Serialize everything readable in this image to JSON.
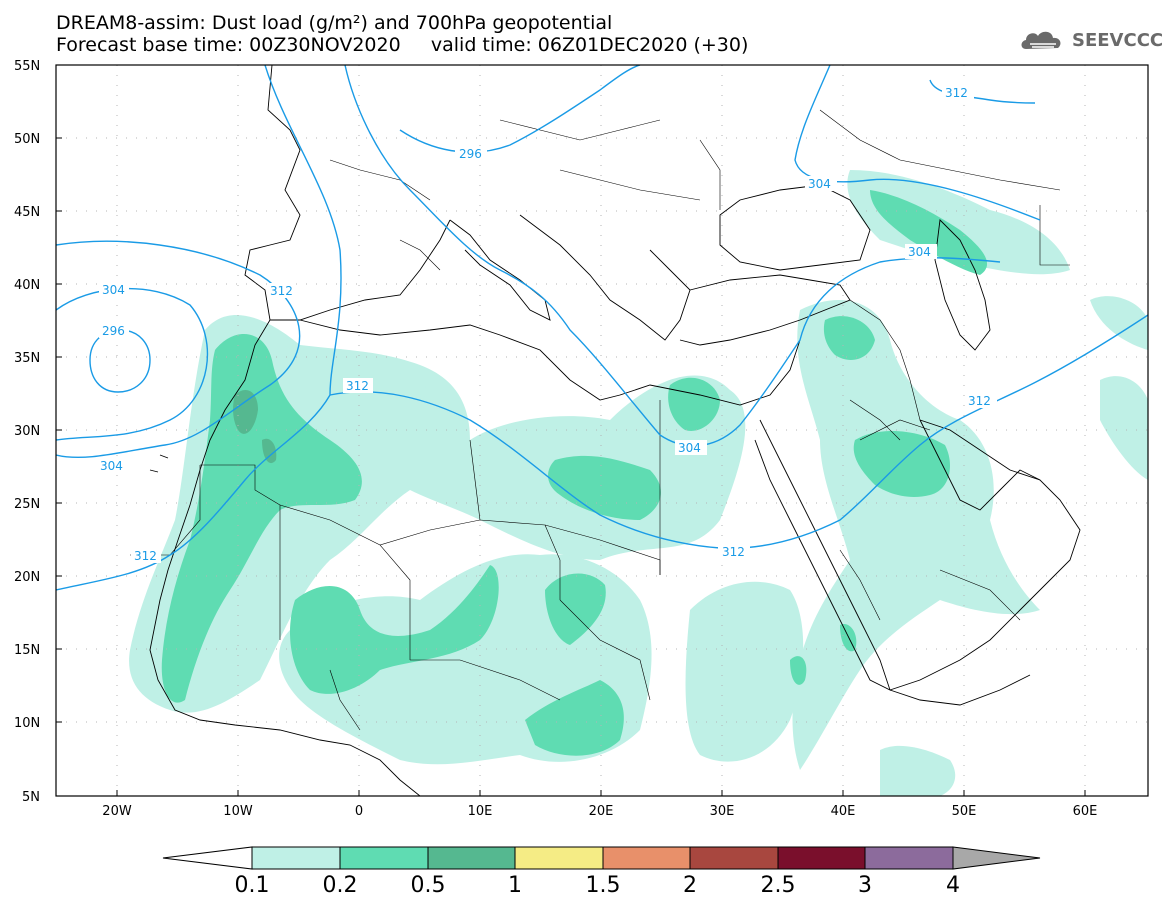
{
  "header": {
    "title_line1": "DREAM8-assim: Dust load (g/m²) and 700hPa geopotential",
    "title_line2": "Forecast base time: 00Z30NOV2020     valid time: 06Z01DEC2020 (+30)",
    "brand": "SEEVCCC",
    "brand_logo_icon": "cloud-logo-icon"
  },
  "map": {
    "lat_labels": [
      "55N",
      "50N",
      "45N",
      "40N",
      "35N",
      "30N",
      "25N",
      "20N",
      "15N",
      "10N",
      "5N"
    ],
    "lon_labels": [
      "20W",
      "10W",
      "0",
      "10E",
      "20E",
      "30E",
      "40E",
      "50E",
      "60E"
    ],
    "extent": {
      "lon_min": -25,
      "lon_max": 65,
      "lat_min": 5,
      "lat_max": 55
    },
    "contour_labels": [
      "312",
      "296",
      "304",
      "312",
      "304",
      "296",
      "312",
      "304",
      "304",
      "304",
      "312",
      "312"
    ]
  },
  "colorbar": {
    "ticks": [
      "0.1",
      "0.2",
      "0.5",
      "1",
      "1.5",
      "2",
      "2.5",
      "3",
      "4"
    ],
    "colors": [
      "#ffffff",
      "#bff0e6",
      "#5fdcb2",
      "#55b890",
      "#f5ec85",
      "#e8906a",
      "#a8473f",
      "#7a0f2c",
      "#8c6b9c",
      "#a8a8a8"
    ]
  }
}
